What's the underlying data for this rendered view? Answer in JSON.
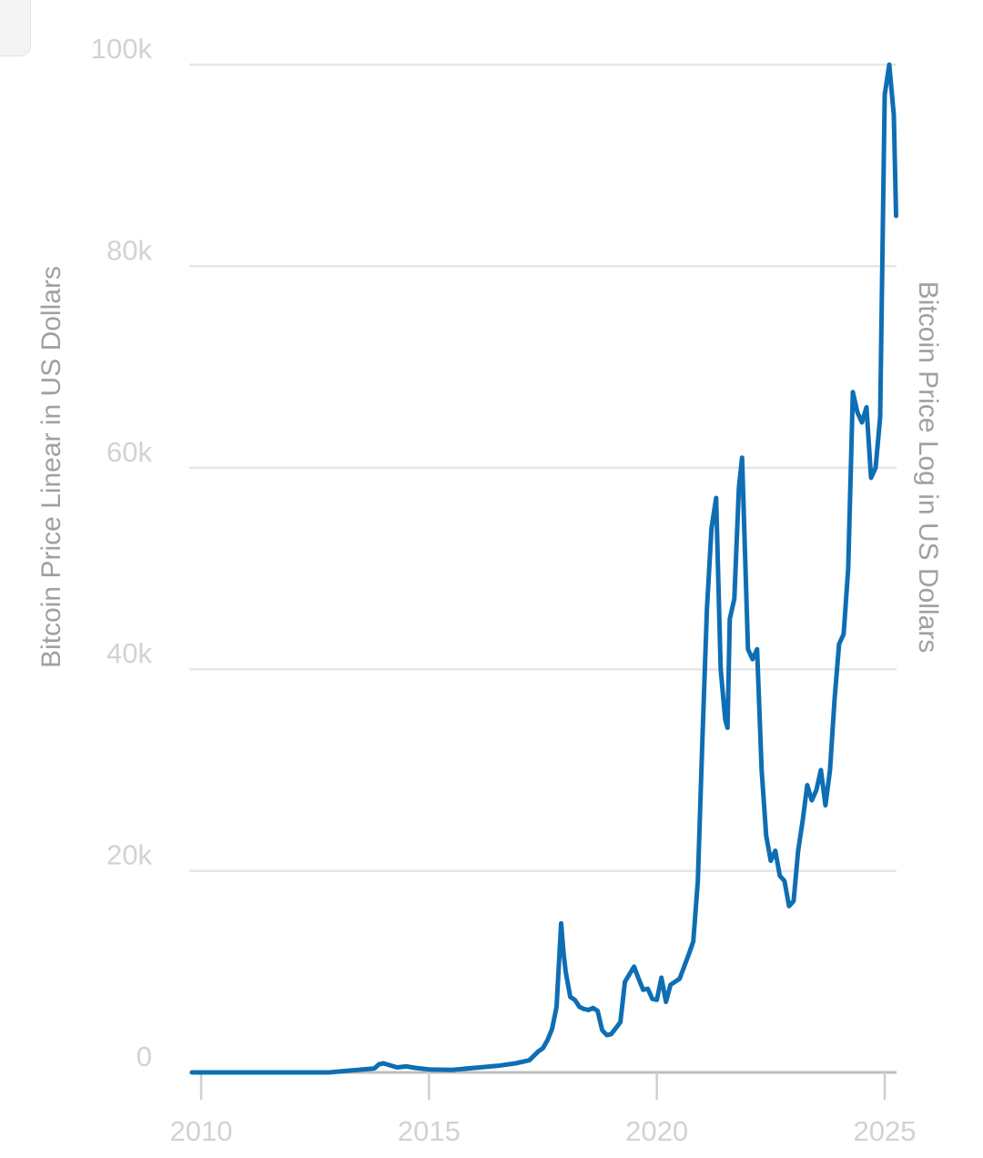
{
  "chart_data": {
    "type": "line",
    "left_axis_title": "Bitcoin Price Linear in US Dollars",
    "right_axis_title": "Bitcoin Price Log in US Dollars",
    "ylim": [
      0,
      100000
    ],
    "xlim": [
      2009.95,
      2025.25
    ],
    "y_ticks": [
      {
        "value": 0,
        "label": "0"
      },
      {
        "value": 20000,
        "label": "20k"
      },
      {
        "value": 40000,
        "label": "40k"
      },
      {
        "value": 60000,
        "label": "60k"
      },
      {
        "value": 80000,
        "label": "80k"
      },
      {
        "value": 100000,
        "label": "100k"
      }
    ],
    "x_ticks": [
      {
        "value": 2010,
        "label": "2010"
      },
      {
        "value": 2015,
        "label": "2015"
      },
      {
        "value": 2020,
        "label": "2020"
      },
      {
        "value": 2025,
        "label": "2025"
      }
    ],
    "grid": true,
    "line_color": "#0e6eb4",
    "series": [
      {
        "x": [
          2009.8,
          2011.5,
          2012.8,
          2013.2,
          2013.8,
          2013.9,
          2014.0,
          2014.3,
          2014.5,
          2014.7,
          2015.0,
          2015.5,
          2016.0,
          2016.5,
          2016.9,
          2017.2,
          2017.4,
          2017.5,
          2017.6,
          2017.7,
          2017.8,
          2017.9,
          2017.95,
          2018.0,
          2018.1,
          2018.2,
          2018.3,
          2018.4,
          2018.5,
          2018.6,
          2018.7,
          2018.8,
          2018.9,
          2019.0,
          2019.2,
          2019.3,
          2019.5,
          2019.6,
          2019.7,
          2019.8,
          2019.9,
          2020.0,
          2020.1,
          2020.2,
          2020.3,
          2020.4,
          2020.5,
          2020.6,
          2020.7,
          2020.8,
          2020.9,
          2021.0,
          2021.1,
          2021.2,
          2021.3,
          2021.4,
          2021.5,
          2021.55,
          2021.6,
          2021.7,
          2021.8,
          2021.87,
          2022.0,
          2022.1,
          2022.2,
          2022.3,
          2022.4,
          2022.5,
          2022.6,
          2022.7,
          2022.8,
          2022.9,
          2023.0,
          2023.1,
          2023.2,
          2023.3,
          2023.4,
          2023.5,
          2023.6,
          2023.7,
          2023.8,
          2023.9,
          2024.0,
          2024.1,
          2024.2,
          2024.3,
          2024.4,
          2024.5,
          2024.6,
          2024.7,
          2024.8,
          2024.9,
          2025.0,
          2025.1,
          2025.2,
          2025.25
        ],
        "y": [
          0,
          0,
          0,
          150,
          400,
          800,
          900,
          500,
          600,
          450,
          300,
          250,
          450,
          650,
          900,
          1200,
          2100,
          2400,
          3200,
          4300,
          6500,
          14800,
          12000,
          10000,
          7500,
          7200,
          6500,
          6300,
          6200,
          6400,
          6100,
          4200,
          3700,
          3800,
          5000,
          9000,
          10500,
          9300,
          8200,
          8300,
          7300,
          7200,
          9400,
          7000,
          8700,
          9000,
          9300,
          10500,
          11700,
          13000,
          19000,
          33000,
          46000,
          54000,
          57000,
          40000,
          35000,
          34200,
          45000,
          47000,
          58000,
          61000,
          42000,
          41000,
          42000,
          30000,
          23500,
          21000,
          22000,
          19500,
          19000,
          16500,
          17000,
          22000,
          25000,
          28500,
          27000,
          28000,
          30000,
          26500,
          30000,
          37000,
          42500,
          43500,
          50000,
          67500,
          65500,
          64500,
          66000,
          59000,
          60000,
          65000,
          97000,
          100000,
          95000,
          85000
        ]
      }
    ]
  }
}
